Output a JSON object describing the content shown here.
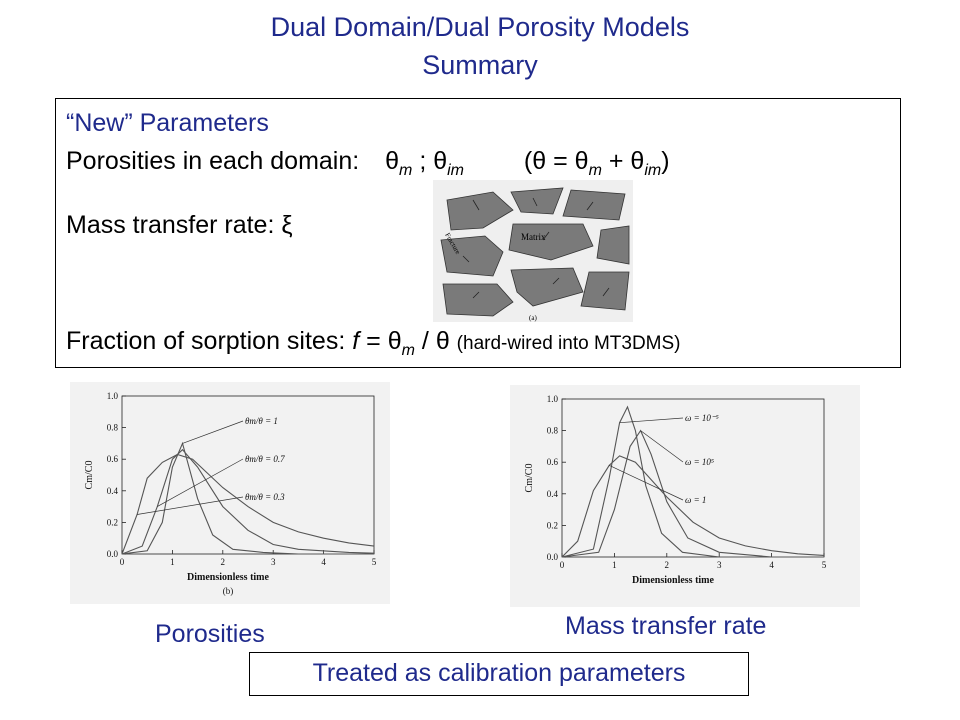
{
  "title": {
    "line1": "Dual Domain/Dual Porosity Models",
    "line2": "Summary"
  },
  "params": {
    "heading": "“New” Parameters",
    "porosity_label": "Porosities in each domain:",
    "theta": "θ",
    "sub_m": "m",
    "sub_im": "im",
    "sep": ";",
    "eq_open": "(",
    "eq_equals": "=",
    "eq_plus": "+",
    "eq_close": ")",
    "mass_transfer_label": "Mass transfer rate:",
    "xi": "ξ",
    "fraction_label": "Fraction of sorption sites:",
    "f": "f",
    "slash": "/",
    "fraction_note": "(hard-wired into MT3DMS)"
  },
  "fracture_figure": {
    "matrix_label": "Matrix",
    "fracture_label": "Fracture",
    "caption": "(a)"
  },
  "chart_data": [
    {
      "type": "line",
      "xlabel": "Dimensionless time",
      "ylabel": "Cm/C0",
      "caption": "(b)",
      "x_ticks": [
        "0",
        "1",
        "2",
        "3",
        "4",
        "5"
      ],
      "y_ticks": [
        "0.0",
        "0.2",
        "0.4",
        "0.6",
        "0.8",
        "1.0"
      ],
      "xlim": [
        0,
        5
      ],
      "ylim": [
        0,
        1.0
      ],
      "series": [
        {
          "name": "θm/θ = 1",
          "x": [
            0,
            0.5,
            0.8,
            1.0,
            1.2,
            1.5,
            1.8,
            2.2,
            2.8,
            3.5,
            4.5,
            5
          ],
          "y": [
            0,
            0.02,
            0.2,
            0.55,
            0.7,
            0.35,
            0.12,
            0.03,
            0.01,
            0,
            0,
            0
          ]
        },
        {
          "name": "θm/θ = 0.7",
          "x": [
            0,
            0.4,
            0.7,
            1.0,
            1.2,
            1.5,
            2.0,
            2.5,
            3.0,
            3.5,
            4.5,
            5
          ],
          "y": [
            0,
            0.05,
            0.3,
            0.6,
            0.66,
            0.55,
            0.3,
            0.15,
            0.06,
            0.03,
            0.01,
            0.005
          ]
        },
        {
          "name": "θm/θ = 0.3",
          "x": [
            0,
            0.3,
            0.5,
            0.8,
            1.1,
            1.4,
            2.0,
            2.5,
            3.0,
            3.5,
            4.0,
            4.5,
            5
          ],
          "y": [
            0,
            0.25,
            0.48,
            0.58,
            0.63,
            0.6,
            0.42,
            0.3,
            0.2,
            0.14,
            0.1,
            0.07,
            0.05
          ]
        }
      ]
    },
    {
      "type": "line",
      "xlabel": "Dimensionless time",
      "ylabel": "Cm/C0",
      "x_ticks": [
        "0",
        "1",
        "2",
        "3",
        "4",
        "5"
      ],
      "y_ticks": [
        "0.0",
        "0.2",
        "0.4",
        "0.6",
        "0.8",
        "1.0"
      ],
      "xlim": [
        0,
        5
      ],
      "ylim": [
        0,
        1.0
      ],
      "series": [
        {
          "name": "ω = 10⁻⁵",
          "x": [
            0,
            0.6,
            0.9,
            1.1,
            1.25,
            1.4,
            1.6,
            1.9,
            2.3,
            3,
            5
          ],
          "y": [
            0,
            0.05,
            0.5,
            0.85,
            0.95,
            0.8,
            0.45,
            0.15,
            0.03,
            0,
            0
          ]
        },
        {
          "name": "ω = 10⁵",
          "x": [
            0,
            0.7,
            1.0,
            1.3,
            1.5,
            1.7,
            2.0,
            2.4,
            3,
            4,
            5
          ],
          "y": [
            0,
            0.03,
            0.3,
            0.7,
            0.8,
            0.65,
            0.35,
            0.12,
            0.03,
            0,
            0
          ]
        },
        {
          "name": "ω = 1",
          "x": [
            0,
            0.3,
            0.6,
            0.9,
            1.1,
            1.4,
            2.0,
            2.5,
            3.0,
            3.5,
            4.0,
            4.5,
            5
          ],
          "y": [
            0,
            0.1,
            0.42,
            0.58,
            0.64,
            0.6,
            0.38,
            0.22,
            0.12,
            0.07,
            0.04,
            0.02,
            0.01
          ]
        }
      ]
    }
  ],
  "captions": {
    "porosities": "Porosities",
    "mass_transfer": "Mass transfer rate",
    "calibration": "Treated as calibration parameters"
  },
  "colors": {
    "title": "#1f2a8c",
    "curve": "#555555"
  }
}
